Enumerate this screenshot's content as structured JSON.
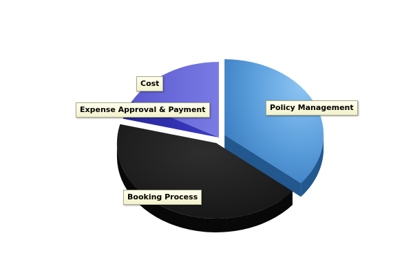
{
  "chart_data": {
    "type": "pie",
    "style": "3d-exploded",
    "legend": "none",
    "slices": [
      {
        "label": "Policy Management",
        "value": 36,
        "color": "#5a9bd8",
        "side_color": "#23588f",
        "exploded": true
      },
      {
        "label": "Booking Process",
        "value": 43,
        "color": "#1c1c1c",
        "side_color": "#080808",
        "exploded": true
      },
      {
        "label": "Expense Approval & Payment",
        "value": 4,
        "color": "#3434b6",
        "side_color": "#1a1a7e",
        "exploded": false
      },
      {
        "label": "Cost",
        "value": 17,
        "color": "#6f70dc",
        "side_color": "#3d3ea6",
        "exploded": false
      }
    ]
  }
}
